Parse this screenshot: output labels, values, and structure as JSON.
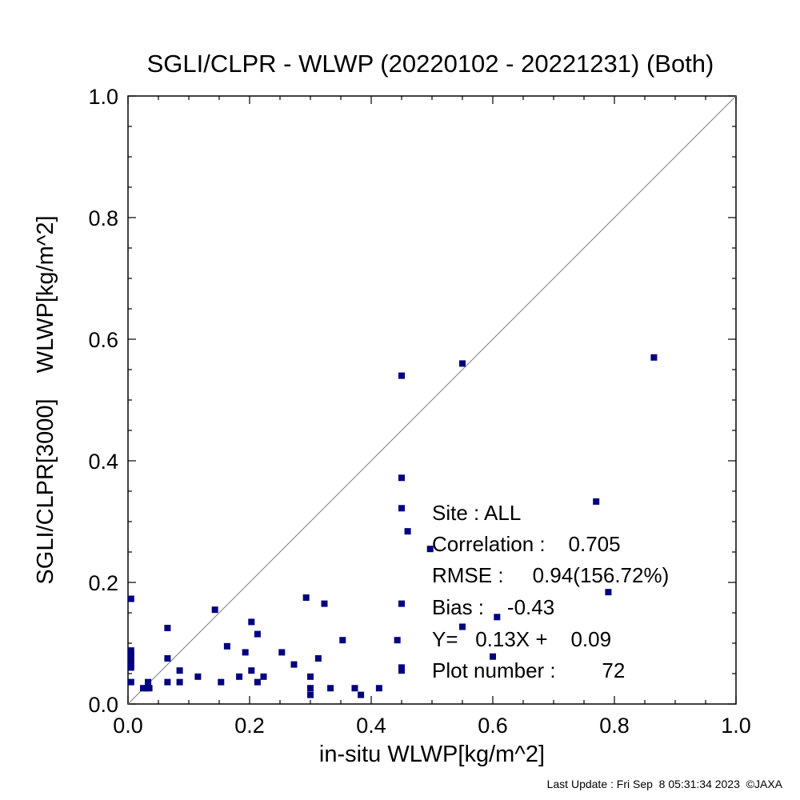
{
  "title": "SGLI/CLPR - WLWP (20220102 - 20221231) (Both)",
  "footer": "Last Update : Fri Sep  8 05:31:34 2023  ©JAXA",
  "colors": {
    "points": "#000080",
    "diagonal": "#808080",
    "axes": "#000000"
  },
  "stats": {
    "site": "Site : ALL",
    "correlation": "Correlation :    0.705",
    "rmse": "RMSE :     0.94(156.72%)",
    "bias": "Bias :    -0.43",
    "regression": "Y=   0.13X +    0.09",
    "plot_number": "Plot number :        72"
  },
  "chart_data": {
    "type": "scatter",
    "title": "SGLI/CLPR - WLWP (20220102 - 20221231) (Both)",
    "xlabel": "in-situ WLWP[kg/m^2]",
    "ylabel": "SGLI/CLPR[3000]    WLWP[kg/m^2]",
    "xlim": [
      0.0,
      1.0
    ],
    "ylim": [
      0.0,
      1.0
    ],
    "xticks": [
      "0.0",
      "0.2",
      "0.4",
      "0.6",
      "0.8",
      "1.0"
    ],
    "yticks": [
      "0.0",
      "0.2",
      "0.4",
      "0.6",
      "0.8",
      "1.0"
    ],
    "reference_line": "y = x",
    "grid": false,
    "points": [
      {
        "x": 0.005,
        "y": 0.173
      },
      {
        "x": 0.005,
        "y": 0.088
      },
      {
        "x": 0.005,
        "y": 0.083
      },
      {
        "x": 0.005,
        "y": 0.077
      },
      {
        "x": 0.005,
        "y": 0.071
      },
      {
        "x": 0.005,
        "y": 0.066
      },
      {
        "x": 0.005,
        "y": 0.06
      },
      {
        "x": 0.005,
        "y": 0.036
      },
      {
        "x": 0.025,
        "y": 0.026
      },
      {
        "x": 0.03,
        "y": 0.026
      },
      {
        "x": 0.033,
        "y": 0.036
      },
      {
        "x": 0.035,
        "y": 0.026
      },
      {
        "x": 0.065,
        "y": 0.125
      },
      {
        "x": 0.065,
        "y": 0.075
      },
      {
        "x": 0.065,
        "y": 0.036
      },
      {
        "x": 0.085,
        "y": 0.055
      },
      {
        "x": 0.085,
        "y": 0.036
      },
      {
        "x": 0.115,
        "y": 0.045
      },
      {
        "x": 0.143,
        "y": 0.155
      },
      {
        "x": 0.153,
        "y": 0.036
      },
      {
        "x": 0.163,
        "y": 0.095
      },
      {
        "x": 0.183,
        "y": 0.045
      },
      {
        "x": 0.193,
        "y": 0.085
      },
      {
        "x": 0.203,
        "y": 0.135
      },
      {
        "x": 0.203,
        "y": 0.055
      },
      {
        "x": 0.213,
        "y": 0.115
      },
      {
        "x": 0.213,
        "y": 0.036
      },
      {
        "x": 0.223,
        "y": 0.045
      },
      {
        "x": 0.253,
        "y": 0.085
      },
      {
        "x": 0.273,
        "y": 0.065
      },
      {
        "x": 0.293,
        "y": 0.175
      },
      {
        "x": 0.3,
        "y": 0.045
      },
      {
        "x": 0.3,
        "y": 0.026
      },
      {
        "x": 0.3,
        "y": 0.015
      },
      {
        "x": 0.313,
        "y": 0.075
      },
      {
        "x": 0.323,
        "y": 0.165
      },
      {
        "x": 0.333,
        "y": 0.026
      },
      {
        "x": 0.353,
        "y": 0.105
      },
      {
        "x": 0.373,
        "y": 0.026
      },
      {
        "x": 0.383,
        "y": 0.015
      },
      {
        "x": 0.413,
        "y": 0.026
      },
      {
        "x": 0.443,
        "y": 0.105
      },
      {
        "x": 0.45,
        "y": 0.54
      },
      {
        "x": 0.45,
        "y": 0.372
      },
      {
        "x": 0.45,
        "y": 0.322
      },
      {
        "x": 0.45,
        "y": 0.165
      },
      {
        "x": 0.45,
        "y": 0.06
      },
      {
        "x": 0.45,
        "y": 0.055
      },
      {
        "x": 0.46,
        "y": 0.284
      },
      {
        "x": 0.497,
        "y": 0.255
      },
      {
        "x": 0.55,
        "y": 0.56
      },
      {
        "x": 0.55,
        "y": 0.127
      },
      {
        "x": 0.6,
        "y": 0.078
      },
      {
        "x": 0.607,
        "y": 0.143
      },
      {
        "x": 0.77,
        "y": 0.333
      },
      {
        "x": 0.79,
        "y": 0.184
      },
      {
        "x": 0.865,
        "y": 0.57
      }
    ]
  }
}
